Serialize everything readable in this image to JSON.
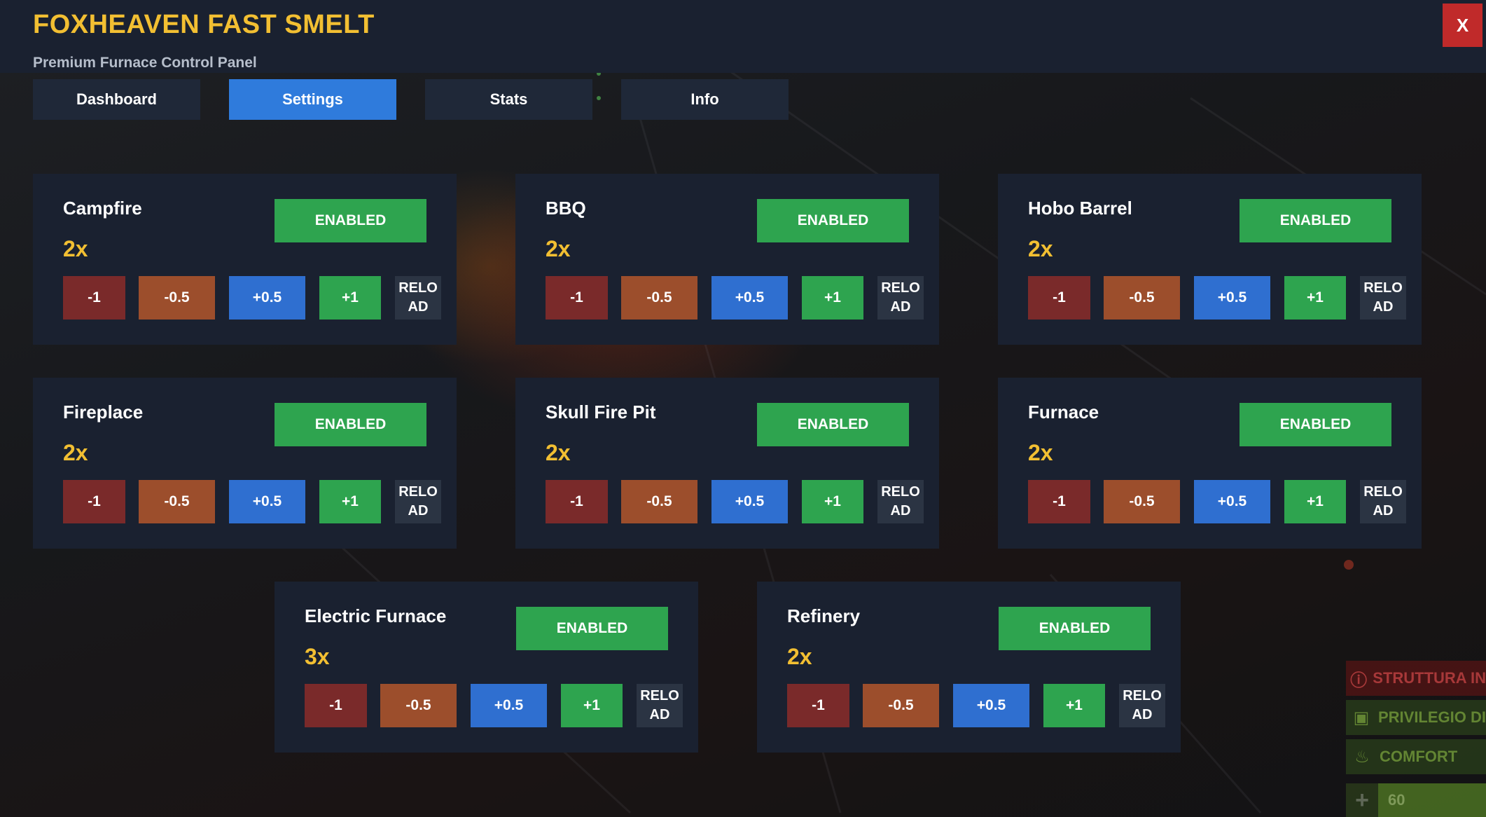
{
  "header": {
    "title": "FOXHEAVEN FAST SMELT",
    "subtitle": "Premium Furnace Control Panel",
    "close_label": "X"
  },
  "tabs": [
    {
      "label": "Dashboard",
      "active": false
    },
    {
      "label": "Settings",
      "active": true
    },
    {
      "label": "Stats",
      "active": false
    },
    {
      "label": "Info",
      "active": false
    }
  ],
  "controls": {
    "enabled_label": "ENABLED",
    "minus1": "-1",
    "minus05": "-0.5",
    "plus05": "+0.5",
    "plus1": "+1",
    "reload": "RELOAD"
  },
  "furnaces": [
    {
      "name": "Campfire",
      "multiplier": "2x"
    },
    {
      "name": "BBQ",
      "multiplier": "2x"
    },
    {
      "name": "Hobo Barrel",
      "multiplier": "2x"
    },
    {
      "name": "Fireplace",
      "multiplier": "2x"
    },
    {
      "name": "Skull Fire Pit",
      "multiplier": "2x"
    },
    {
      "name": "Furnace",
      "multiplier": "2x"
    },
    {
      "name": "Electric Furnace",
      "multiplier": "3x"
    },
    {
      "name": "Refinery",
      "multiplier": "2x"
    }
  ],
  "hud": {
    "items": [
      {
        "icon": "warning-icon",
        "label": "STRUTTURA IN"
      },
      {
        "icon": "cube-icon",
        "label": "PRIVILEGIO DI"
      },
      {
        "icon": "flame-icon",
        "label": "COMFORT"
      }
    ],
    "health_value": "60"
  },
  "colors": {
    "accent_gold": "#f2bf32",
    "panel_bg": "#1a2130",
    "tab_active": "#2f7bdc",
    "enabled_green": "#2ea44f",
    "close_red": "#c02a2a"
  }
}
